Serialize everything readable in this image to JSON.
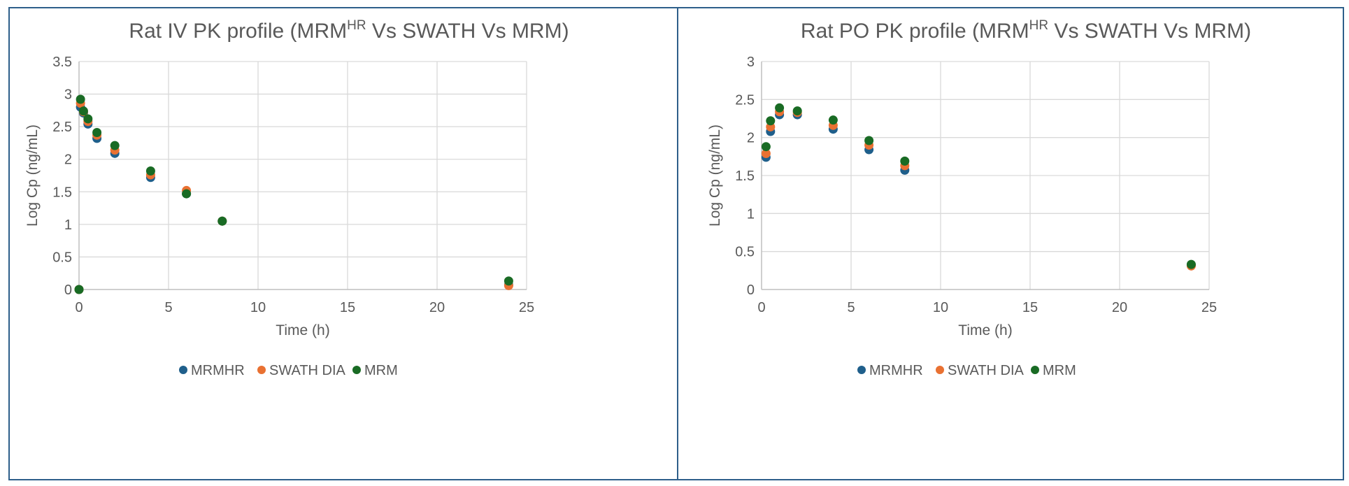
{
  "chart_data": [
    {
      "type": "scatter",
      "title": "Rat IV PK profile (MRM",
      "title_superscript": "HR",
      "title_suffix": " Vs SWATH Vs MRM)",
      "xlabel": "Time (h)",
      "ylabel": "Log Cp (ng/mL)",
      "xlim": [
        0,
        25
      ],
      "ylim": [
        0,
        3.5
      ],
      "xticks": [
        "0",
        "5",
        "10",
        "15",
        "20",
        "25"
      ],
      "yticks": [
        "0",
        "0.5",
        "1",
        "1.5",
        "2",
        "2.5",
        "3",
        "3.5"
      ],
      "grid": true,
      "legend_position": "bottom",
      "series": [
        {
          "name": "MRMHR",
          "color": "#1f5f8b",
          "x": [
            0,
            0.083,
            0.25,
            0.5,
            1,
            2,
            4,
            6,
            8,
            24
          ],
          "y": [
            0,
            2.8,
            2.71,
            2.54,
            2.32,
            2.09,
            1.72,
            1.47,
            1.05,
            0.07
          ]
        },
        {
          "name": "SWATH DIA",
          "color": "#e97132",
          "x": [
            0,
            0.083,
            0.25,
            0.5,
            1,
            2,
            4,
            6,
            8,
            24
          ],
          "y": [
            0,
            2.86,
            2.73,
            2.58,
            2.37,
            2.14,
            1.76,
            1.52,
            1.05,
            0.06
          ]
        },
        {
          "name": "MRM",
          "color": "#196b24",
          "x": [
            0,
            0.083,
            0.25,
            0.5,
            1,
            2,
            4,
            6,
            8,
            24
          ],
          "y": [
            0,
            2.92,
            2.74,
            2.62,
            2.41,
            2.21,
            1.82,
            1.47,
            1.05,
            0.13
          ]
        }
      ]
    },
    {
      "type": "scatter",
      "title": "Rat PO PK profile (MRM",
      "title_superscript": "HR",
      "title_suffix": " Vs SWATH Vs MRM)",
      "xlabel": "Time (h)",
      "ylabel": "Log Cp (ng/mL)",
      "xlim": [
        0,
        25
      ],
      "ylim": [
        0,
        3
      ],
      "xticks": [
        "0",
        "5",
        "10",
        "15",
        "20",
        "25"
      ],
      "yticks": [
        "0",
        "0.5",
        "1",
        "1.5",
        "2",
        "2.5",
        "3"
      ],
      "grid": true,
      "legend_position": "bottom",
      "series": [
        {
          "name": "MRMHR",
          "color": "#1f5f8b",
          "x": [
            0.25,
            0.5,
            1,
            2,
            4,
            6,
            8,
            24
          ],
          "y": [
            1.74,
            2.08,
            2.3,
            2.3,
            2.11,
            1.84,
            1.57,
            0.32
          ]
        },
        {
          "name": "SWATH DIA",
          "color": "#e97132",
          "x": [
            0.25,
            0.5,
            1,
            2,
            4,
            6,
            8,
            24
          ],
          "y": [
            1.79,
            2.14,
            2.34,
            2.33,
            2.16,
            1.9,
            1.63,
            0.31
          ]
        },
        {
          "name": "MRM",
          "color": "#196b24",
          "x": [
            0.25,
            0.5,
            1,
            2,
            4,
            6,
            8,
            24
          ],
          "y": [
            1.88,
            2.22,
            2.39,
            2.35,
            2.23,
            1.96,
            1.69,
            0.33
          ]
        }
      ]
    }
  ]
}
